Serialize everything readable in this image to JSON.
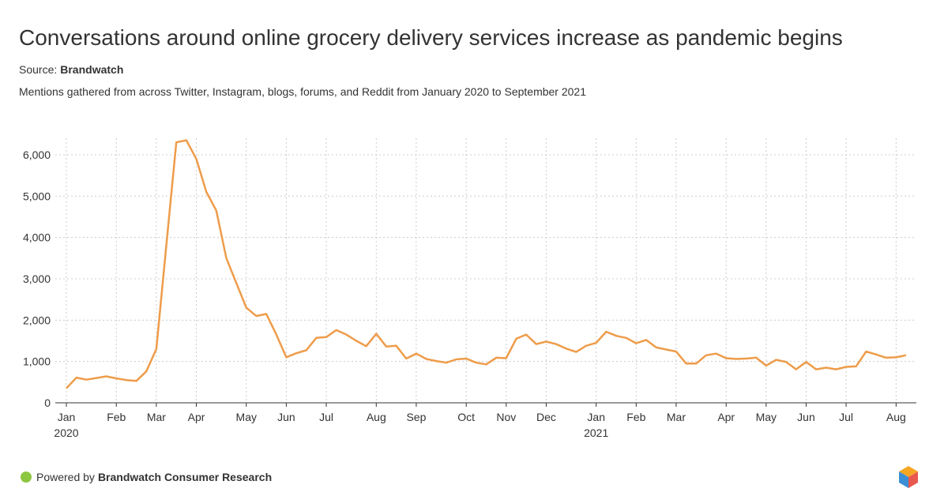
{
  "chart_data": {
    "type": "line",
    "title": "Conversations around online grocery delivery services increase as pandemic begins",
    "source_label": "Source:",
    "source": "Brandwatch",
    "subtitle": "Mentions gathered from across Twitter, Instagram, blogs, forums, and Reddit from January 2020 to September 2021",
    "powered_by": "Powered by",
    "powered_by_name": "Brandwatch Consumer Research",
    "categories": [
      "Jan",
      null,
      null,
      null,
      null,
      "Feb",
      null,
      null,
      null,
      "Mar",
      null,
      null,
      null,
      "Apr",
      null,
      null,
      null,
      null,
      "May",
      null,
      null,
      null,
      "Jun",
      null,
      null,
      null,
      "Jul",
      null,
      null,
      null,
      null,
      "Aug",
      null,
      null,
      null,
      "Sep",
      null,
      null,
      null,
      null,
      "Oct",
      null,
      null,
      null,
      "Nov",
      null,
      null,
      null,
      "Dec",
      null,
      null,
      null,
      null,
      "Jan",
      null,
      null,
      null,
      "Feb",
      null,
      null,
      null,
      "Mar",
      null,
      null,
      null,
      null,
      "Apr",
      null,
      null,
      null,
      "May",
      null,
      null,
      null,
      "Jun",
      null,
      null,
      null,
      "Jul",
      null,
      null,
      null,
      null,
      "Aug",
      null
    ],
    "category_years": [
      "2020",
      null,
      null,
      null,
      null,
      null,
      null,
      null,
      null,
      null,
      null,
      null,
      null,
      null,
      null,
      null,
      null,
      null,
      null,
      null,
      null,
      null,
      null,
      null,
      null,
      null,
      null,
      null,
      null,
      null,
      null,
      null,
      null,
      null,
      null,
      null,
      null,
      null,
      null,
      null,
      null,
      null,
      null,
      null,
      null,
      null,
      null,
      null,
      null,
      null,
      null,
      null,
      null,
      "2021",
      null,
      null,
      null,
      null,
      null,
      null,
      null,
      null,
      null,
      null,
      null,
      null,
      null,
      null,
      null,
      null,
      null,
      null,
      null,
      null,
      null,
      null,
      null,
      null,
      null,
      null,
      null,
      null,
      null,
      null,
      null
    ],
    "values": [
      350,
      610,
      560,
      600,
      640,
      590,
      550,
      530,
      760,
      1300,
      3800,
      6300,
      6350,
      5900,
      5100,
      4650,
      3500,
      2900,
      2300,
      2100,
      2150,
      1650,
      1100,
      1200,
      1270,
      1570,
      1590,
      1760,
      1650,
      1500,
      1370,
      1670,
      1360,
      1380,
      1070,
      1190,
      1060,
      1010,
      970,
      1050,
      1070,
      970,
      930,
      1090,
      1080,
      1550,
      1650,
      1420,
      1480,
      1420,
      1310,
      1230,
      1380,
      1450,
      1720,
      1620,
      1570,
      1440,
      1520,
      1340,
      1290,
      1240,
      950,
      950,
      1150,
      1190,
      1080,
      1060,
      1070,
      1090,
      900,
      1040,
      990,
      810,
      990,
      810,
      850,
      810,
      870,
      880,
      1240,
      1170,
      1090,
      1100,
      1150
    ],
    "color": "#ee9c4a",
    "ylim": [
      0,
      6400
    ],
    "yticks": [
      0,
      {
        "value": 1000,
        "label": "1,000"
      },
      {
        "value": 2000,
        "label": "2,000"
      },
      {
        "value": 3000,
        "label": "3,000"
      },
      {
        "value": 4000,
        "label": "4,000"
      },
      {
        "value": 5000,
        "label": "5,000"
      },
      {
        "value": 6000,
        "label": "6,000"
      }
    ],
    "grid": true
  }
}
